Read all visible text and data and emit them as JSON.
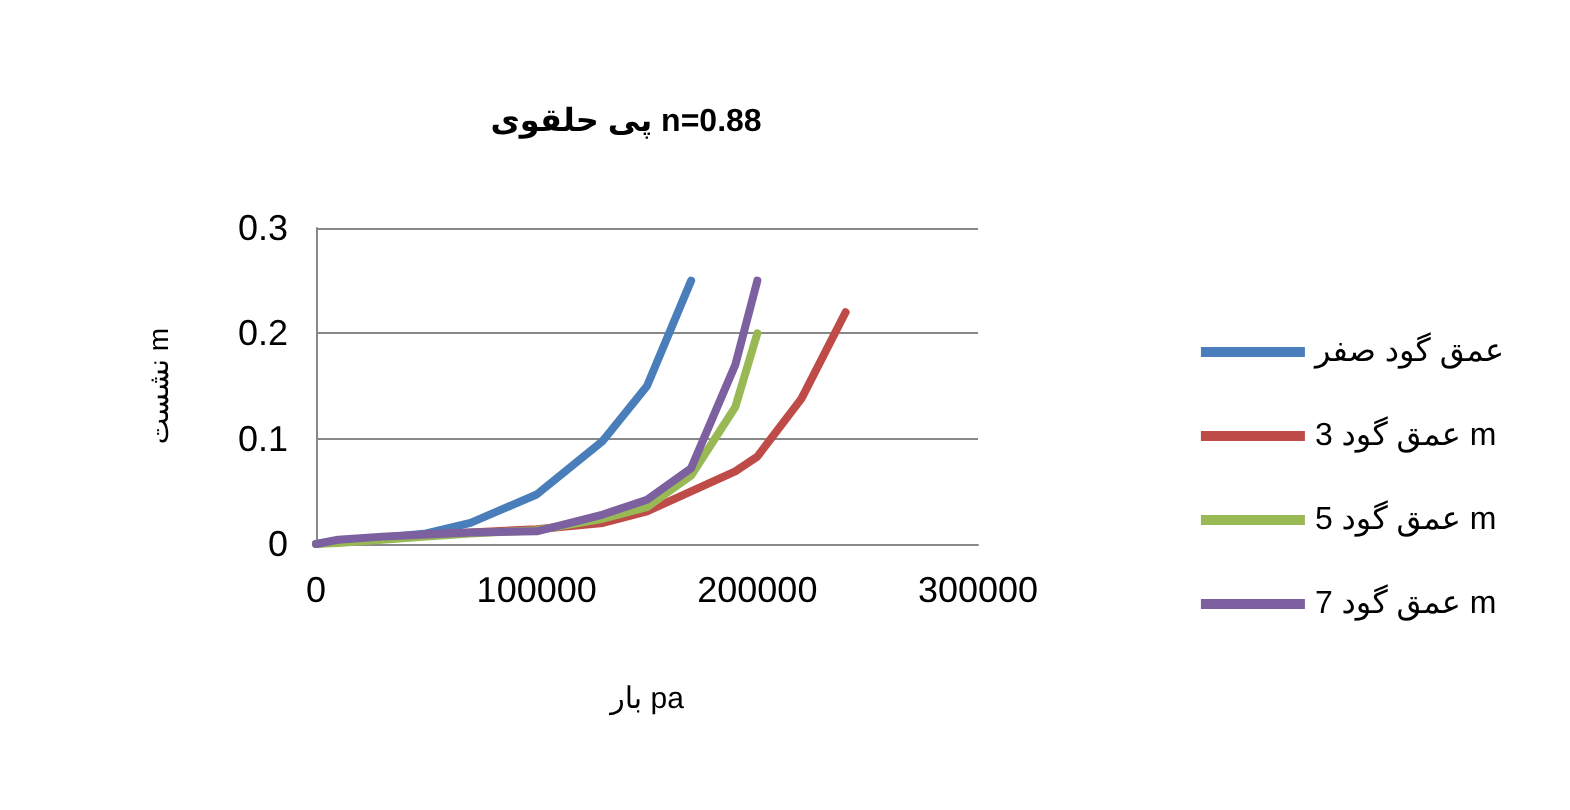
{
  "chart_data": {
    "type": "line",
    "title": "پی حلقوی n=0.88",
    "xlabel": "بار pa",
    "ylabel": "نشست m",
    "xlim": [
      0,
      300000
    ],
    "xticks": [
      0,
      100000,
      200000,
      300000
    ],
    "ylim": [
      0,
      0.3
    ],
    "yticks": [
      0,
      0.1,
      0.2,
      0.3
    ],
    "grid": "y",
    "legend": "right",
    "marker": "none",
    "line_style": "solid",
    "series": [
      {
        "name": "عمق گود صفر",
        "color": "#4a7ebb",
        "x": [
          0,
          10000,
          30000,
          50000,
          70000,
          100000,
          130000,
          150000,
          170000
        ],
        "values": [
          0,
          0.003,
          0.006,
          0.01,
          0.02,
          0.047,
          0.098,
          0.15,
          0.25
        ]
      },
      {
        "name": "عمق گود 3 m",
        "color": "#be4b48",
        "x": [
          50000,
          70000,
          100000,
          130000,
          150000,
          190000,
          200000,
          220000,
          240000
        ],
        "values": [
          0.009,
          0.011,
          0.014,
          0.02,
          0.031,
          0.069,
          0.083,
          0.138,
          0.22
        ]
      },
      {
        "name": "عمق گود 5 m",
        "color": "#98b954",
        "x": [
          0,
          10000,
          30000,
          50000,
          70000,
          100000,
          130000,
          150000,
          170000,
          190000,
          200000
        ],
        "values": [
          0,
          0.001,
          0.004,
          0.007,
          0.01,
          0.013,
          0.024,
          0.035,
          0.065,
          0.13,
          0.2
        ]
      },
      {
        "name": "عمق گود 7 m",
        "color": "#7d60a0",
        "x": [
          0,
          10000,
          30000,
          50000,
          70000,
          100000,
          130000,
          150000,
          170000,
          190000,
          200000
        ],
        "values": [
          0,
          0.004,
          0.007,
          0.009,
          0.011,
          0.012,
          0.028,
          0.042,
          0.072,
          0.17,
          0.25
        ]
      }
    ]
  }
}
